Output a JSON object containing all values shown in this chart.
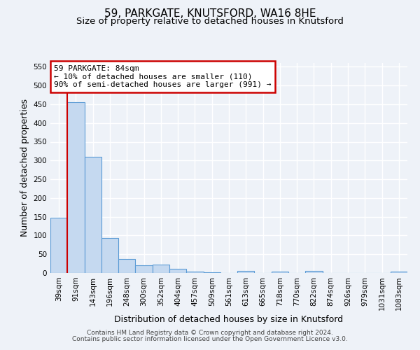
{
  "title": "59, PARKGATE, KNUTSFORD, WA16 8HE",
  "subtitle": "Size of property relative to detached houses in Knutsford",
  "xlabel": "Distribution of detached houses by size in Knutsford",
  "ylabel": "Number of detached properties",
  "bin_labels": [
    "39sqm",
    "91sqm",
    "143sqm",
    "196sqm",
    "248sqm",
    "300sqm",
    "352sqm",
    "404sqm",
    "457sqm",
    "509sqm",
    "561sqm",
    "613sqm",
    "665sqm",
    "718sqm",
    "770sqm",
    "822sqm",
    "874sqm",
    "926sqm",
    "979sqm",
    "1031sqm",
    "1083sqm"
  ],
  "bar_values": [
    148,
    455,
    310,
    93,
    38,
    20,
    22,
    12,
    4,
    1,
    0,
    6,
    0,
    3,
    0,
    5,
    0,
    0,
    0,
    0,
    3
  ],
  "bar_color": "#c5d9f0",
  "bar_edge_color": "#5b9bd5",
  "ylim": [
    0,
    560
  ],
  "yticks": [
    0,
    50,
    100,
    150,
    200,
    250,
    300,
    350,
    400,
    450,
    500,
    550
  ],
  "vline_color": "#cc0000",
  "annotation_text": "59 PARKGATE: 84sqm\n← 10% of detached houses are smaller (110)\n90% of semi-detached houses are larger (991) →",
  "annotation_box_color": "#ffffff",
  "annotation_box_edge": "#cc0000",
  "background_color": "#eef2f8",
  "grid_color": "#ffffff",
  "footer_line1": "Contains HM Land Registry data © Crown copyright and database right 2024.",
  "footer_line2": "Contains public sector information licensed under the Open Government Licence v3.0.",
  "title_fontsize": 11,
  "subtitle_fontsize": 9.5,
  "axis_label_fontsize": 9,
  "tick_fontsize": 7.5,
  "annotation_fontsize": 8,
  "footer_fontsize": 6.5
}
